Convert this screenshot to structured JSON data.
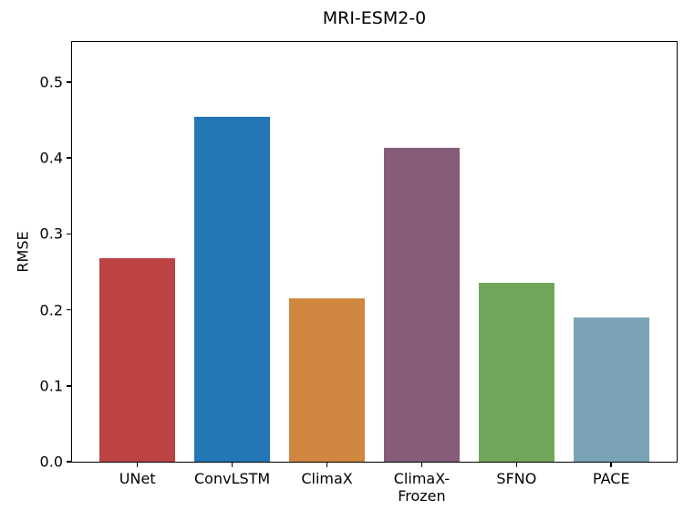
{
  "chart_data": {
    "type": "bar",
    "title": "MRI-ESM2-0",
    "xlabel": "",
    "ylabel": "RMSE",
    "categories": [
      "UNet",
      "ConvLSTM",
      "ClimaX",
      "ClimaX-\nFrozen",
      "SFNO",
      "PACE"
    ],
    "values": [
      0.268,
      0.455,
      0.215,
      0.413,
      0.236,
      0.19
    ],
    "bar_colors": [
      "#bc4342",
      "#2277b4",
      "#d0873f",
      "#855c7a",
      "#70a659",
      "#7aa3b8"
    ],
    "ylim": [
      0,
      0.553
    ],
    "xlim": [
      -0.69,
      5.69
    ],
    "yticks": [
      0,
      0.1,
      0.2,
      0.3,
      0.4,
      0.5
    ],
    "ytick_labels": [
      "0.0",
      "0.1",
      "0.2",
      "0.3",
      "0.4",
      "0.5"
    ],
    "bar_rel_width": 0.8,
    "grid": false,
    "legend": null,
    "spine_color": "#000000",
    "background_color": "#ffffff"
  }
}
